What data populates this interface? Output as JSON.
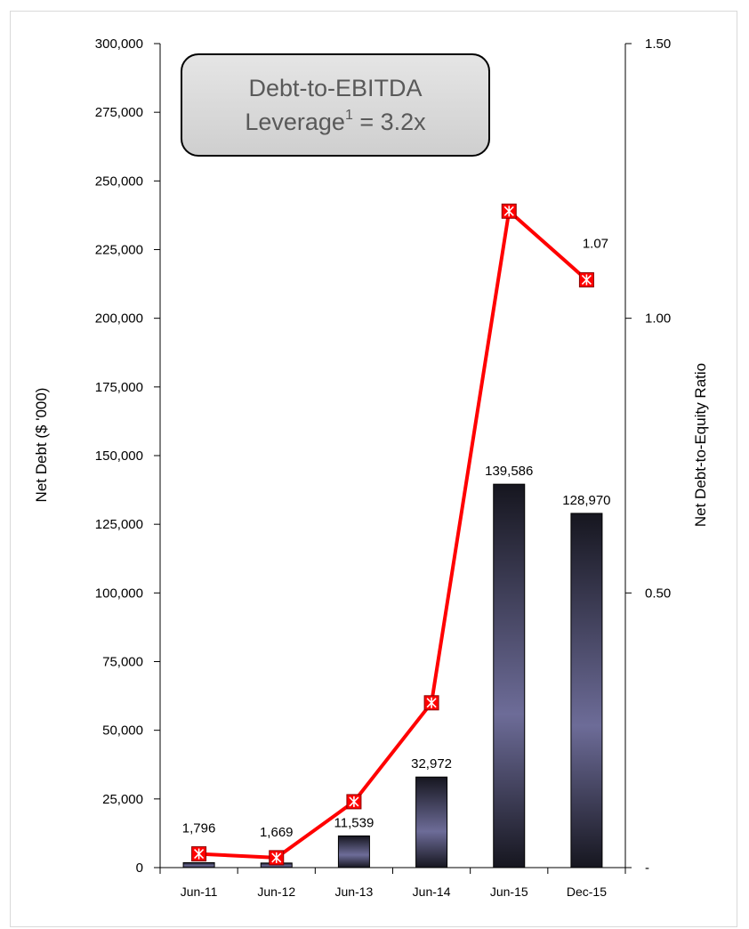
{
  "callout": {
    "line1": "Debt-to-EBITDA",
    "line2_prefix": "Leverage",
    "line2_superscript": "1",
    "line2_suffix": " = 3.2x"
  },
  "chart_data": {
    "type": "bar",
    "categories": [
      "Jun-11",
      "Jun-12",
      "Jun-13",
      "Jun-14",
      "Jun-15",
      "Dec-15"
    ],
    "series": [
      {
        "axis": "left",
        "kind": "bar",
        "values": [
          1796,
          1669,
          11539,
          32972,
          139586,
          128970
        ],
        "labels": [
          "1,796",
          "1,669",
          "11,539",
          "32,972",
          "139,586",
          "128,970"
        ],
        "color_dark": "#16161f",
        "color_light": "#6d6c98"
      },
      {
        "axis": "right",
        "kind": "line",
        "values": [
          0.025,
          0.018,
          0.12,
          0.3,
          1.195,
          1.07
        ],
        "labels": [
          "",
          "",
          "",
          "",
          "",
          "1.07"
        ],
        "color": "#ff0000",
        "marker": "x-in-square"
      }
    ],
    "ylabel": "Net Debt ($ '000)",
    "y2label": "Net Debt-to-Equity Ratio",
    "ylim": [
      0,
      300000
    ],
    "y2lim": [
      0,
      1.5
    ],
    "yticks": [
      0,
      25000,
      50000,
      75000,
      100000,
      125000,
      150000,
      175000,
      200000,
      225000,
      250000,
      275000,
      300000
    ],
    "ytick_labels": [
      "0",
      "25,000",
      "50,000",
      "75,000",
      "100,000",
      "125,000",
      "150,000",
      "175,000",
      "200,000",
      "225,000",
      "250,000",
      "275,000",
      "300,000"
    ],
    "y2ticks": [
      0,
      0.5,
      1.0,
      1.5
    ],
    "y2tick_labels": [
      "-",
      "0.50",
      "1.00",
      "1.50"
    ],
    "grid": false,
    "legend": "none"
  }
}
